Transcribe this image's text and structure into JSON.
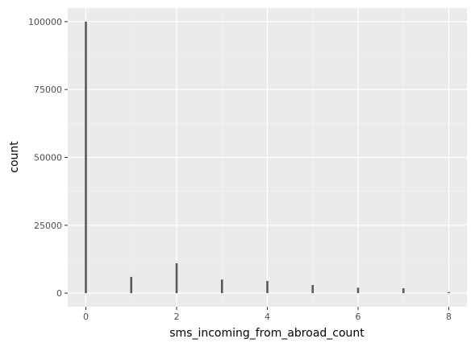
{
  "chart_data": {
    "type": "bar",
    "xlabel": "sms_incoming_from_abroad_count",
    "ylabel": "count",
    "xlim": [
      -0.4,
      8.4
    ],
    "ylim": [
      -5000,
      105000
    ],
    "x_ticks": [
      0,
      2,
      4,
      6,
      8
    ],
    "y_ticks": [
      0,
      25000,
      50000,
      75000,
      100000
    ],
    "x": [
      0,
      1,
      2,
      3,
      4,
      5,
      6,
      7,
      8
    ],
    "values": [
      100000,
      6000,
      11000,
      5000,
      4500,
      3000,
      2000,
      1800,
      400
    ],
    "grid": true,
    "colors": {
      "panel": "#ebebeb",
      "grid_major": "#ffffff",
      "bar": "#595959"
    }
  }
}
